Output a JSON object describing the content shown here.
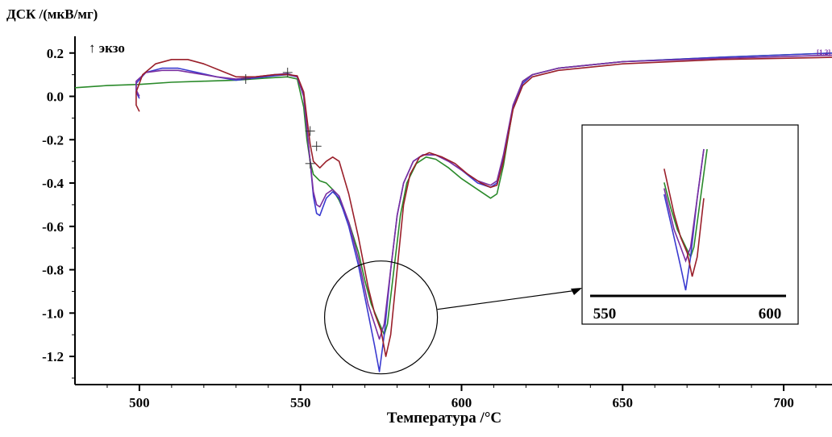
{
  "chart_data": {
    "type": "line",
    "ylabel": "ДСК /(мкВ/мг)",
    "xlabel": "Температура /°C",
    "exo_label": "↑ экзо",
    "xlim": [
      480,
      715
    ],
    "ylim": [
      -1.33,
      0.24
    ],
    "x_ticks": [
      500,
      550,
      600,
      650,
      700
    ],
    "x_tick_labels": [
      "500",
      "550",
      "600",
      "650",
      "700"
    ],
    "y_ticks": [
      0.2,
      0.0,
      -0.2,
      -0.4,
      -0.6,
      -0.8,
      -1.0,
      -1.2
    ],
    "y_tick_labels": [
      "0.2",
      "0.0",
      "-0.2",
      "-0.4",
      "-0.6",
      "-0.8",
      "-1.0",
      "-1.2"
    ],
    "series_markers": "[1.2]",
    "series": [
      {
        "color": "#2a8a2a",
        "points": [
          [
            480,
            0.04
          ],
          [
            490,
            0.05
          ],
          [
            500,
            0.055
          ],
          [
            510,
            0.065
          ],
          [
            520,
            0.07
          ],
          [
            530,
            0.075
          ],
          [
            540,
            0.085
          ],
          [
            546,
            0.09
          ],
          [
            549,
            0.08
          ],
          [
            551,
            -0.05
          ],
          [
            552,
            -0.2
          ],
          [
            553,
            -0.3
          ],
          [
            554,
            -0.36
          ],
          [
            556,
            -0.39
          ],
          [
            558,
            -0.4
          ],
          [
            560,
            -0.43
          ],
          [
            562,
            -0.48
          ],
          [
            565,
            -0.58
          ],
          [
            568,
            -0.72
          ],
          [
            570,
            -0.85
          ],
          [
            572,
            -0.96
          ],
          [
            574,
            -1.03
          ],
          [
            576,
            -1.1
          ],
          [
            577,
            -1.05
          ],
          [
            579,
            -0.8
          ],
          [
            581,
            -0.55
          ],
          [
            583,
            -0.4
          ],
          [
            586,
            -0.31
          ],
          [
            589,
            -0.28
          ],
          [
            592,
            -0.29
          ],
          [
            596,
            -0.33
          ],
          [
            600,
            -0.38
          ],
          [
            605,
            -0.43
          ],
          [
            609,
            -0.47
          ],
          [
            611,
            -0.45
          ],
          [
            613,
            -0.32
          ],
          [
            616,
            -0.05
          ],
          [
            619,
            0.07
          ],
          [
            622,
            0.1
          ],
          [
            630,
            0.13
          ],
          [
            650,
            0.16
          ],
          [
            680,
            0.18
          ],
          [
            715,
            0.2
          ]
        ]
      },
      {
        "color": "#3a3ad0",
        "points": [
          [
            500,
            -0.01
          ],
          [
            499,
            0.02
          ],
          [
            499,
            0.06
          ],
          [
            502,
            0.11
          ],
          [
            507,
            0.13
          ],
          [
            512,
            0.13
          ],
          [
            518,
            0.11
          ],
          [
            524,
            0.09
          ],
          [
            530,
            0.075
          ],
          [
            536,
            0.085
          ],
          [
            542,
            0.095
          ],
          [
            546,
            0.1
          ],
          [
            549,
            0.09
          ],
          [
            551,
            0.0
          ],
          [
            552,
            -0.15
          ],
          [
            553,
            -0.3
          ],
          [
            554,
            -0.46
          ],
          [
            555,
            -0.54
          ],
          [
            556,
            -0.55
          ],
          [
            558,
            -0.47
          ],
          [
            560,
            -0.44
          ],
          [
            562,
            -0.47
          ],
          [
            565,
            -0.6
          ],
          [
            568,
            -0.78
          ],
          [
            571,
            -1.0
          ],
          [
            573,
            -1.15
          ],
          [
            574.5,
            -1.27
          ],
          [
            576,
            -1.1
          ],
          [
            578,
            -0.8
          ],
          [
            580,
            -0.55
          ],
          [
            582,
            -0.4
          ],
          [
            585,
            -0.3
          ],
          [
            588,
            -0.27
          ],
          [
            592,
            -0.27
          ],
          [
            596,
            -0.3
          ],
          [
            600,
            -0.34
          ],
          [
            605,
            -0.4
          ],
          [
            609,
            -0.42
          ],
          [
            611,
            -0.4
          ],
          [
            613,
            -0.28
          ],
          [
            616,
            -0.05
          ],
          [
            619,
            0.06
          ],
          [
            622,
            0.1
          ],
          [
            630,
            0.13
          ],
          [
            650,
            0.16
          ],
          [
            680,
            0.18
          ],
          [
            715,
            0.2
          ]
        ]
      },
      {
        "color": "#7a2fa0",
        "points": [
          [
            500,
            0.0
          ],
          [
            499,
            0.03
          ],
          [
            499,
            0.07
          ],
          [
            502,
            0.11
          ],
          [
            507,
            0.12
          ],
          [
            512,
            0.12
          ],
          [
            518,
            0.105
          ],
          [
            524,
            0.09
          ],
          [
            530,
            0.08
          ],
          [
            536,
            0.09
          ],
          [
            542,
            0.1
          ],
          [
            546,
            0.105
          ],
          [
            549,
            0.09
          ],
          [
            551,
            0.0
          ],
          [
            552,
            -0.15
          ],
          [
            553,
            -0.3
          ],
          [
            554,
            -0.44
          ],
          [
            555,
            -0.5
          ],
          [
            556,
            -0.51
          ],
          [
            558,
            -0.45
          ],
          [
            560,
            -0.43
          ],
          [
            562,
            -0.46
          ],
          [
            565,
            -0.58
          ],
          [
            568,
            -0.75
          ],
          [
            571,
            -0.96
          ],
          [
            573,
            -1.05
          ],
          [
            574.5,
            -1.12
          ],
          [
            576,
            -1.05
          ],
          [
            578,
            -0.8
          ],
          [
            580,
            -0.55
          ],
          [
            582,
            -0.4
          ],
          [
            585,
            -0.3
          ],
          [
            588,
            -0.27
          ],
          [
            592,
            -0.27
          ],
          [
            596,
            -0.3
          ],
          [
            600,
            -0.34
          ],
          [
            605,
            -0.39
          ],
          [
            609,
            -0.41
          ],
          [
            611,
            -0.39
          ],
          [
            613,
            -0.27
          ],
          [
            616,
            -0.04
          ],
          [
            619,
            0.07
          ],
          [
            622,
            0.1
          ],
          [
            630,
            0.13
          ],
          [
            650,
            0.16
          ],
          [
            680,
            0.175
          ],
          [
            715,
            0.19
          ]
        ]
      },
      {
        "color": "#9a1f2a",
        "points": [
          [
            500,
            -0.07
          ],
          [
            499,
            -0.04
          ],
          [
            499,
            0.02
          ],
          [
            501,
            0.1
          ],
          [
            505,
            0.15
          ],
          [
            510,
            0.17
          ],
          [
            515,
            0.17
          ],
          [
            520,
            0.15
          ],
          [
            525,
            0.12
          ],
          [
            530,
            0.09
          ],
          [
            536,
            0.09
          ],
          [
            542,
            0.1
          ],
          [
            546,
            0.1
          ],
          [
            549,
            0.095
          ],
          [
            551,
            0.02
          ],
          [
            552,
            -0.1
          ],
          [
            553,
            -0.22
          ],
          [
            554,
            -0.3
          ],
          [
            556,
            -0.33
          ],
          [
            558,
            -0.3
          ],
          [
            560,
            -0.28
          ],
          [
            562,
            -0.3
          ],
          [
            565,
            -0.45
          ],
          [
            568,
            -0.65
          ],
          [
            571,
            -0.88
          ],
          [
            573,
            -1.0
          ],
          [
            575,
            -1.08
          ],
          [
            576.5,
            -1.2
          ],
          [
            578,
            -1.1
          ],
          [
            580,
            -0.8
          ],
          [
            582,
            -0.5
          ],
          [
            584,
            -0.36
          ],
          [
            587,
            -0.28
          ],
          [
            590,
            -0.26
          ],
          [
            594,
            -0.28
          ],
          [
            598,
            -0.31
          ],
          [
            602,
            -0.36
          ],
          [
            606,
            -0.4
          ],
          [
            609,
            -0.42
          ],
          [
            611,
            -0.41
          ],
          [
            613,
            -0.3
          ],
          [
            616,
            -0.06
          ],
          [
            619,
            0.05
          ],
          [
            622,
            0.09
          ],
          [
            630,
            0.12
          ],
          [
            650,
            0.15
          ],
          [
            680,
            0.17
          ],
          [
            715,
            0.18
          ]
        ]
      }
    ],
    "inset": {
      "xlim": [
        547,
        604
      ],
      "ticks": [
        550,
        600
      ],
      "tick_labels": [
        "550",
        "600"
      ]
    }
  }
}
